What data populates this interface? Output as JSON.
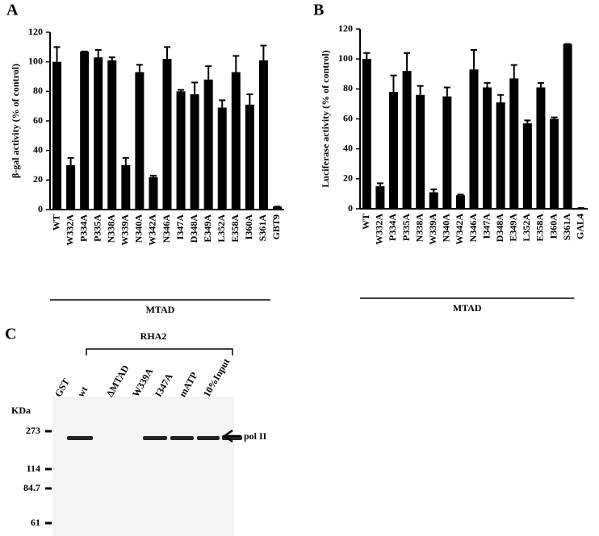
{
  "chart_data": [
    {
      "type": "bar",
      "label": "A",
      "ylabel": "β-gal activity (% of control)",
      "categories": [
        "WT",
        "W332A",
        "P334A",
        "P335A",
        "N338A",
        "W339A",
        "N340A",
        "W342A",
        "N346A",
        "I347A",
        "D348A",
        "E349A",
        "L352A",
        "E358A",
        "I360A",
        "S361A",
        "GBT9"
      ],
      "values": [
        100,
        30,
        107,
        103,
        101,
        30,
        93,
        22,
        102,
        80,
        78,
        88,
        69,
        93,
        71,
        101,
        2
      ],
      "errors": [
        10,
        5,
        0,
        5,
        2,
        5,
        5,
        1,
        8,
        1,
        8,
        9,
        5,
        11,
        7,
        10,
        0
      ],
      "color": "#000000",
      "group_label": "MTAD",
      "ylim": [
        0,
        120
      ],
      "yticks": [
        0,
        20,
        40,
        60,
        80,
        100,
        120
      ]
    },
    {
      "type": "bar",
      "label": "B",
      "ylabel": "Luciferase activity (% of control)",
      "categories": [
        "WT",
        "W332A",
        "P334A",
        "P335A",
        "N338A",
        "W339A",
        "N340A",
        "W342A",
        "N346A",
        "I347A",
        "D348A",
        "E349A",
        "L352A",
        "E358A",
        "I360A",
        "S361A",
        "GAL4"
      ],
      "values": [
        100,
        15,
        78,
        92,
        76,
        11,
        75,
        9,
        93,
        81,
        71,
        87,
        57,
        81,
        60,
        110,
        0.5
      ],
      "errors": [
        4,
        2,
        11,
        12,
        6,
        2,
        6,
        0.5,
        13,
        3,
        5,
        9,
        2,
        3,
        1,
        0,
        0
      ],
      "color": "#000000",
      "group_label": "MTAD",
      "ylim": [
        0,
        120
      ],
      "yticks": [
        0,
        20,
        40,
        60,
        80,
        100,
        120
      ]
    }
  ],
  "gel": {
    "label": "C",
    "group": "RHA2",
    "lanes": [
      "GST",
      "wt",
      "ΔMTAD",
      "W339A",
      "I347A",
      "mATP",
      "10%Input"
    ],
    "unit": "KDa",
    "markers": [
      "273",
      "114",
      "84.7",
      "61"
    ],
    "band": "pol II"
  }
}
